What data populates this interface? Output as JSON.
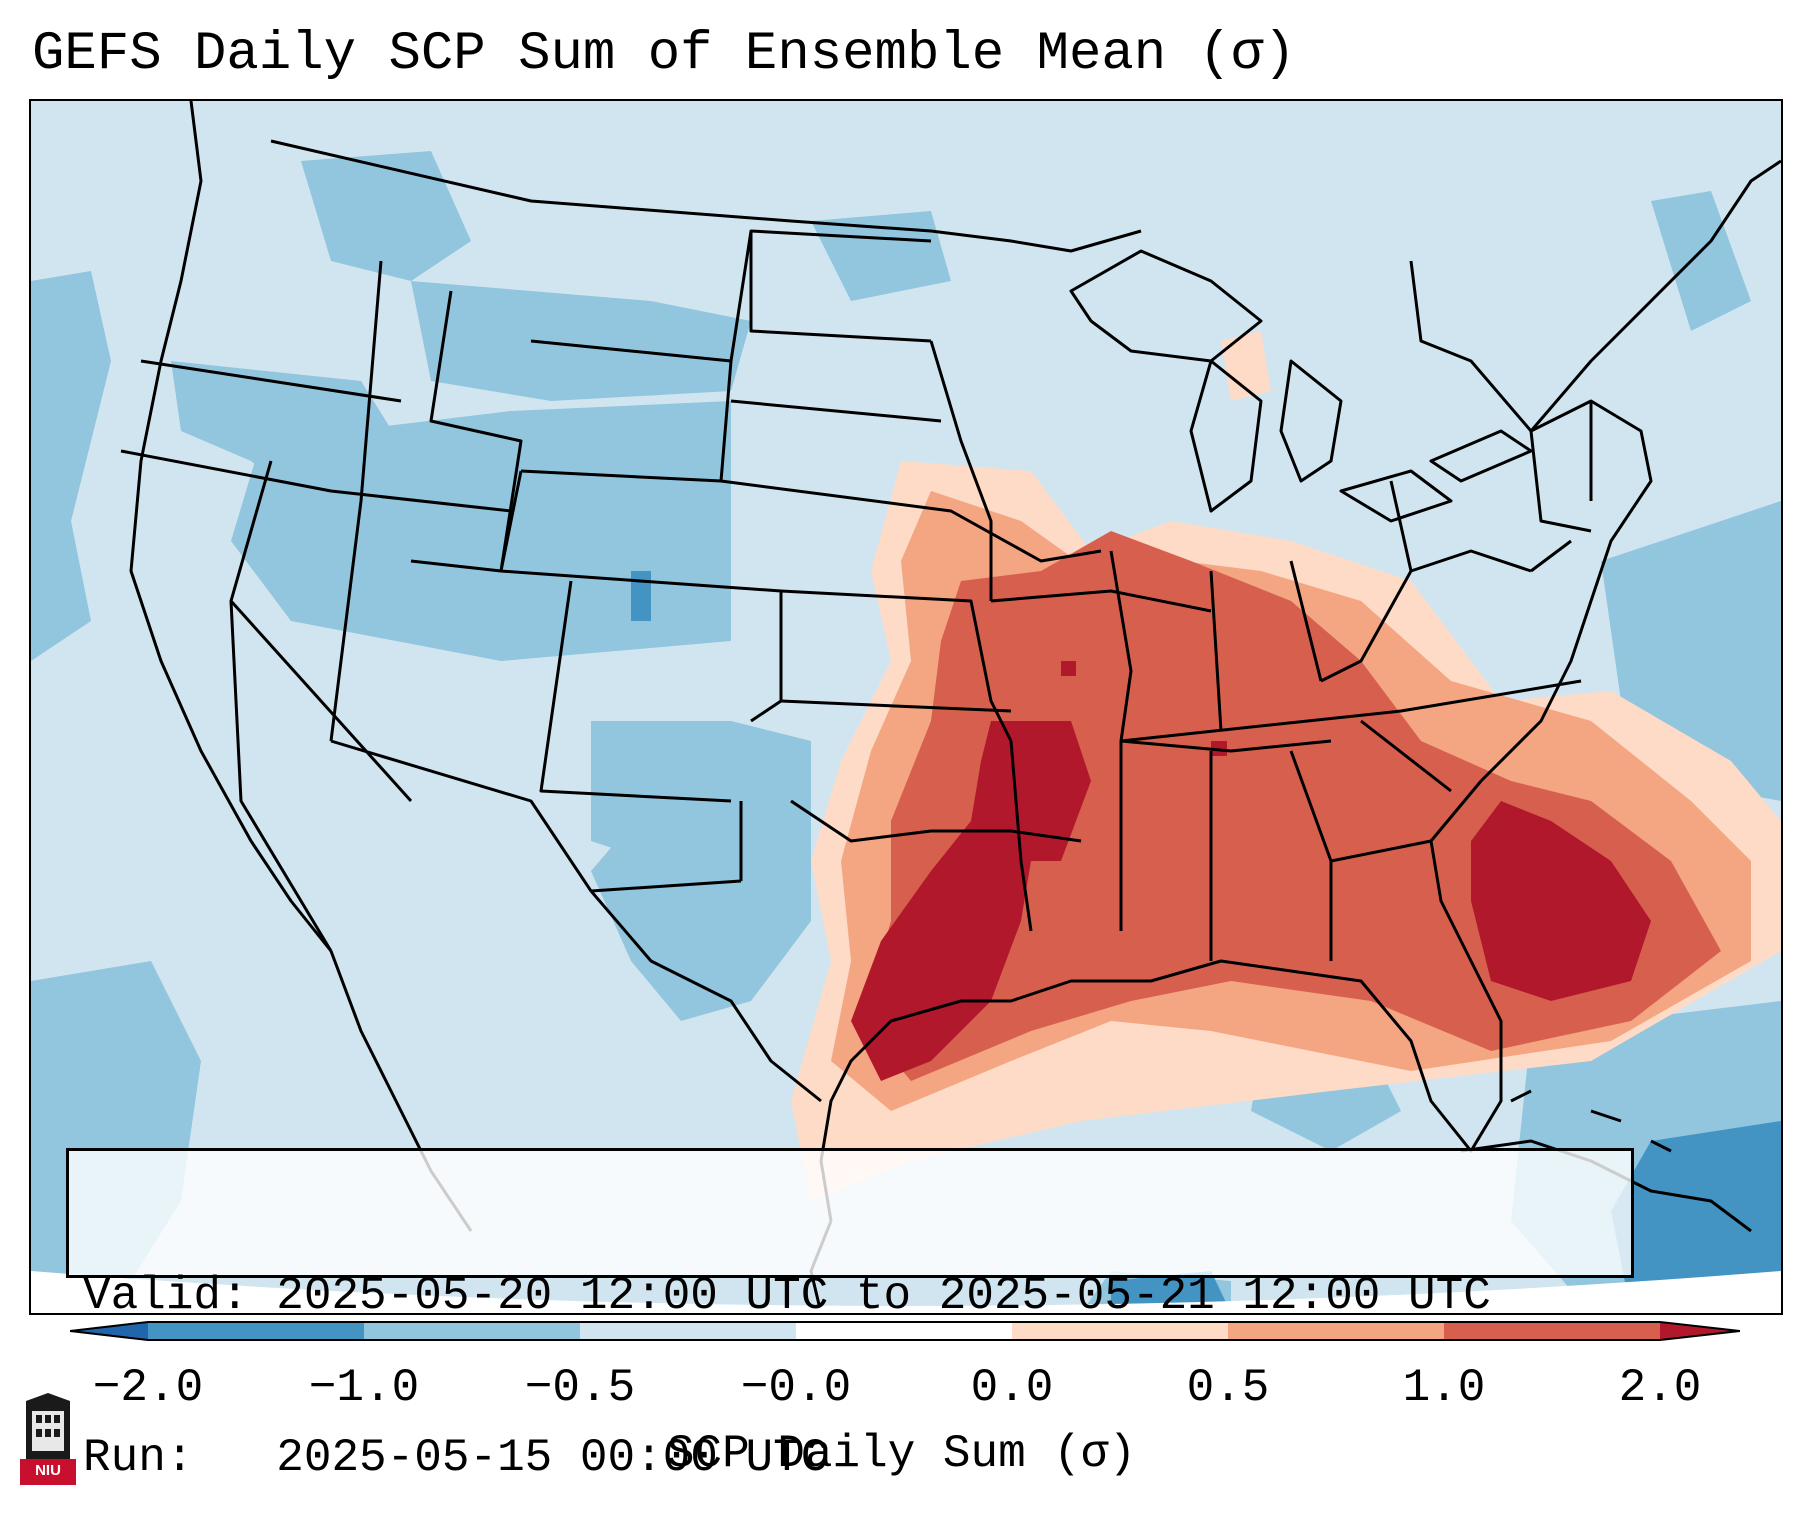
{
  "title": "GEFS Daily SCP Sum of Ensemble Mean (σ)",
  "info": {
    "valid_line": "Valid: 2025-05-20 12:00 UTC to 2025-05-21 12:00 UTC",
    "run_line": "Run:   2025-05-15 00:00 UTC"
  },
  "colorbar": {
    "label": "SCP Daily Sum (σ)",
    "ticks": [
      "−2.0",
      "−1.0",
      "−0.5",
      "−0.0",
      "0.0",
      "0.5",
      "1.0",
      "2.0"
    ],
    "colors": [
      "#4393c3",
      "#92c5de",
      "#d1e5f0",
      "#fddbc7",
      "#f4a582",
      "#d6604d",
      "#b2182b"
    ],
    "under_color": "#2166ac",
    "over_color": "#67001f"
  },
  "logo": {
    "text": "NIU"
  },
  "colors": {
    "strong_negative": "#4393c3",
    "negative": "#92c5de",
    "neutral": "#d1e5f0",
    "weak_positive": "#fddbc7",
    "positive": "#f4a582",
    "strong_positive": "#d6604d",
    "extreme_positive": "#b2182b"
  }
}
